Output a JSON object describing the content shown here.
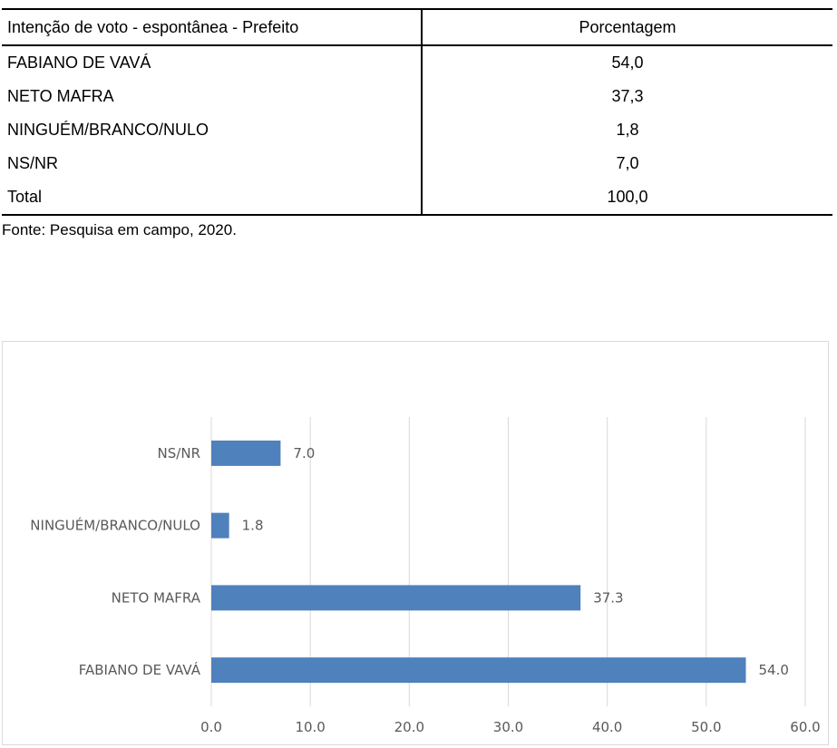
{
  "table": {
    "headers": [
      "Intenção de voto - espontânea - Prefeito",
      "Porcentagem"
    ],
    "rows": [
      [
        "FABIANO DE VAVÁ",
        "54,0"
      ],
      [
        "NETO MAFRA",
        "37,3"
      ],
      [
        "NINGUÉM/BRANCO/NULO",
        "1,8"
      ],
      [
        "NS/NR",
        "7,0"
      ],
      [
        "Total",
        "100,0"
      ]
    ],
    "source": "Fonte: Pesquisa em campo, 2020."
  },
  "chart_data": {
    "type": "bar",
    "orientation": "horizontal",
    "categories": [
      "FABIANO DE VAVÁ",
      "NETO MAFRA",
      "NINGUÉM/BRANCO/NULO",
      "NS/NR"
    ],
    "values": [
      54.0,
      37.3,
      1.8,
      7.0
    ],
    "data_labels": [
      "54.0",
      "37.3",
      "1.8",
      "7.0"
    ],
    "xlim": [
      0,
      60
    ],
    "x_ticks": [
      "0.0",
      "10.0",
      "20.0",
      "30.0",
      "40.0",
      "50.0",
      "60.0"
    ],
    "grid": true,
    "legend": "none",
    "bar_color": "#4f81bd",
    "grid_color": "#d9d9d9"
  }
}
